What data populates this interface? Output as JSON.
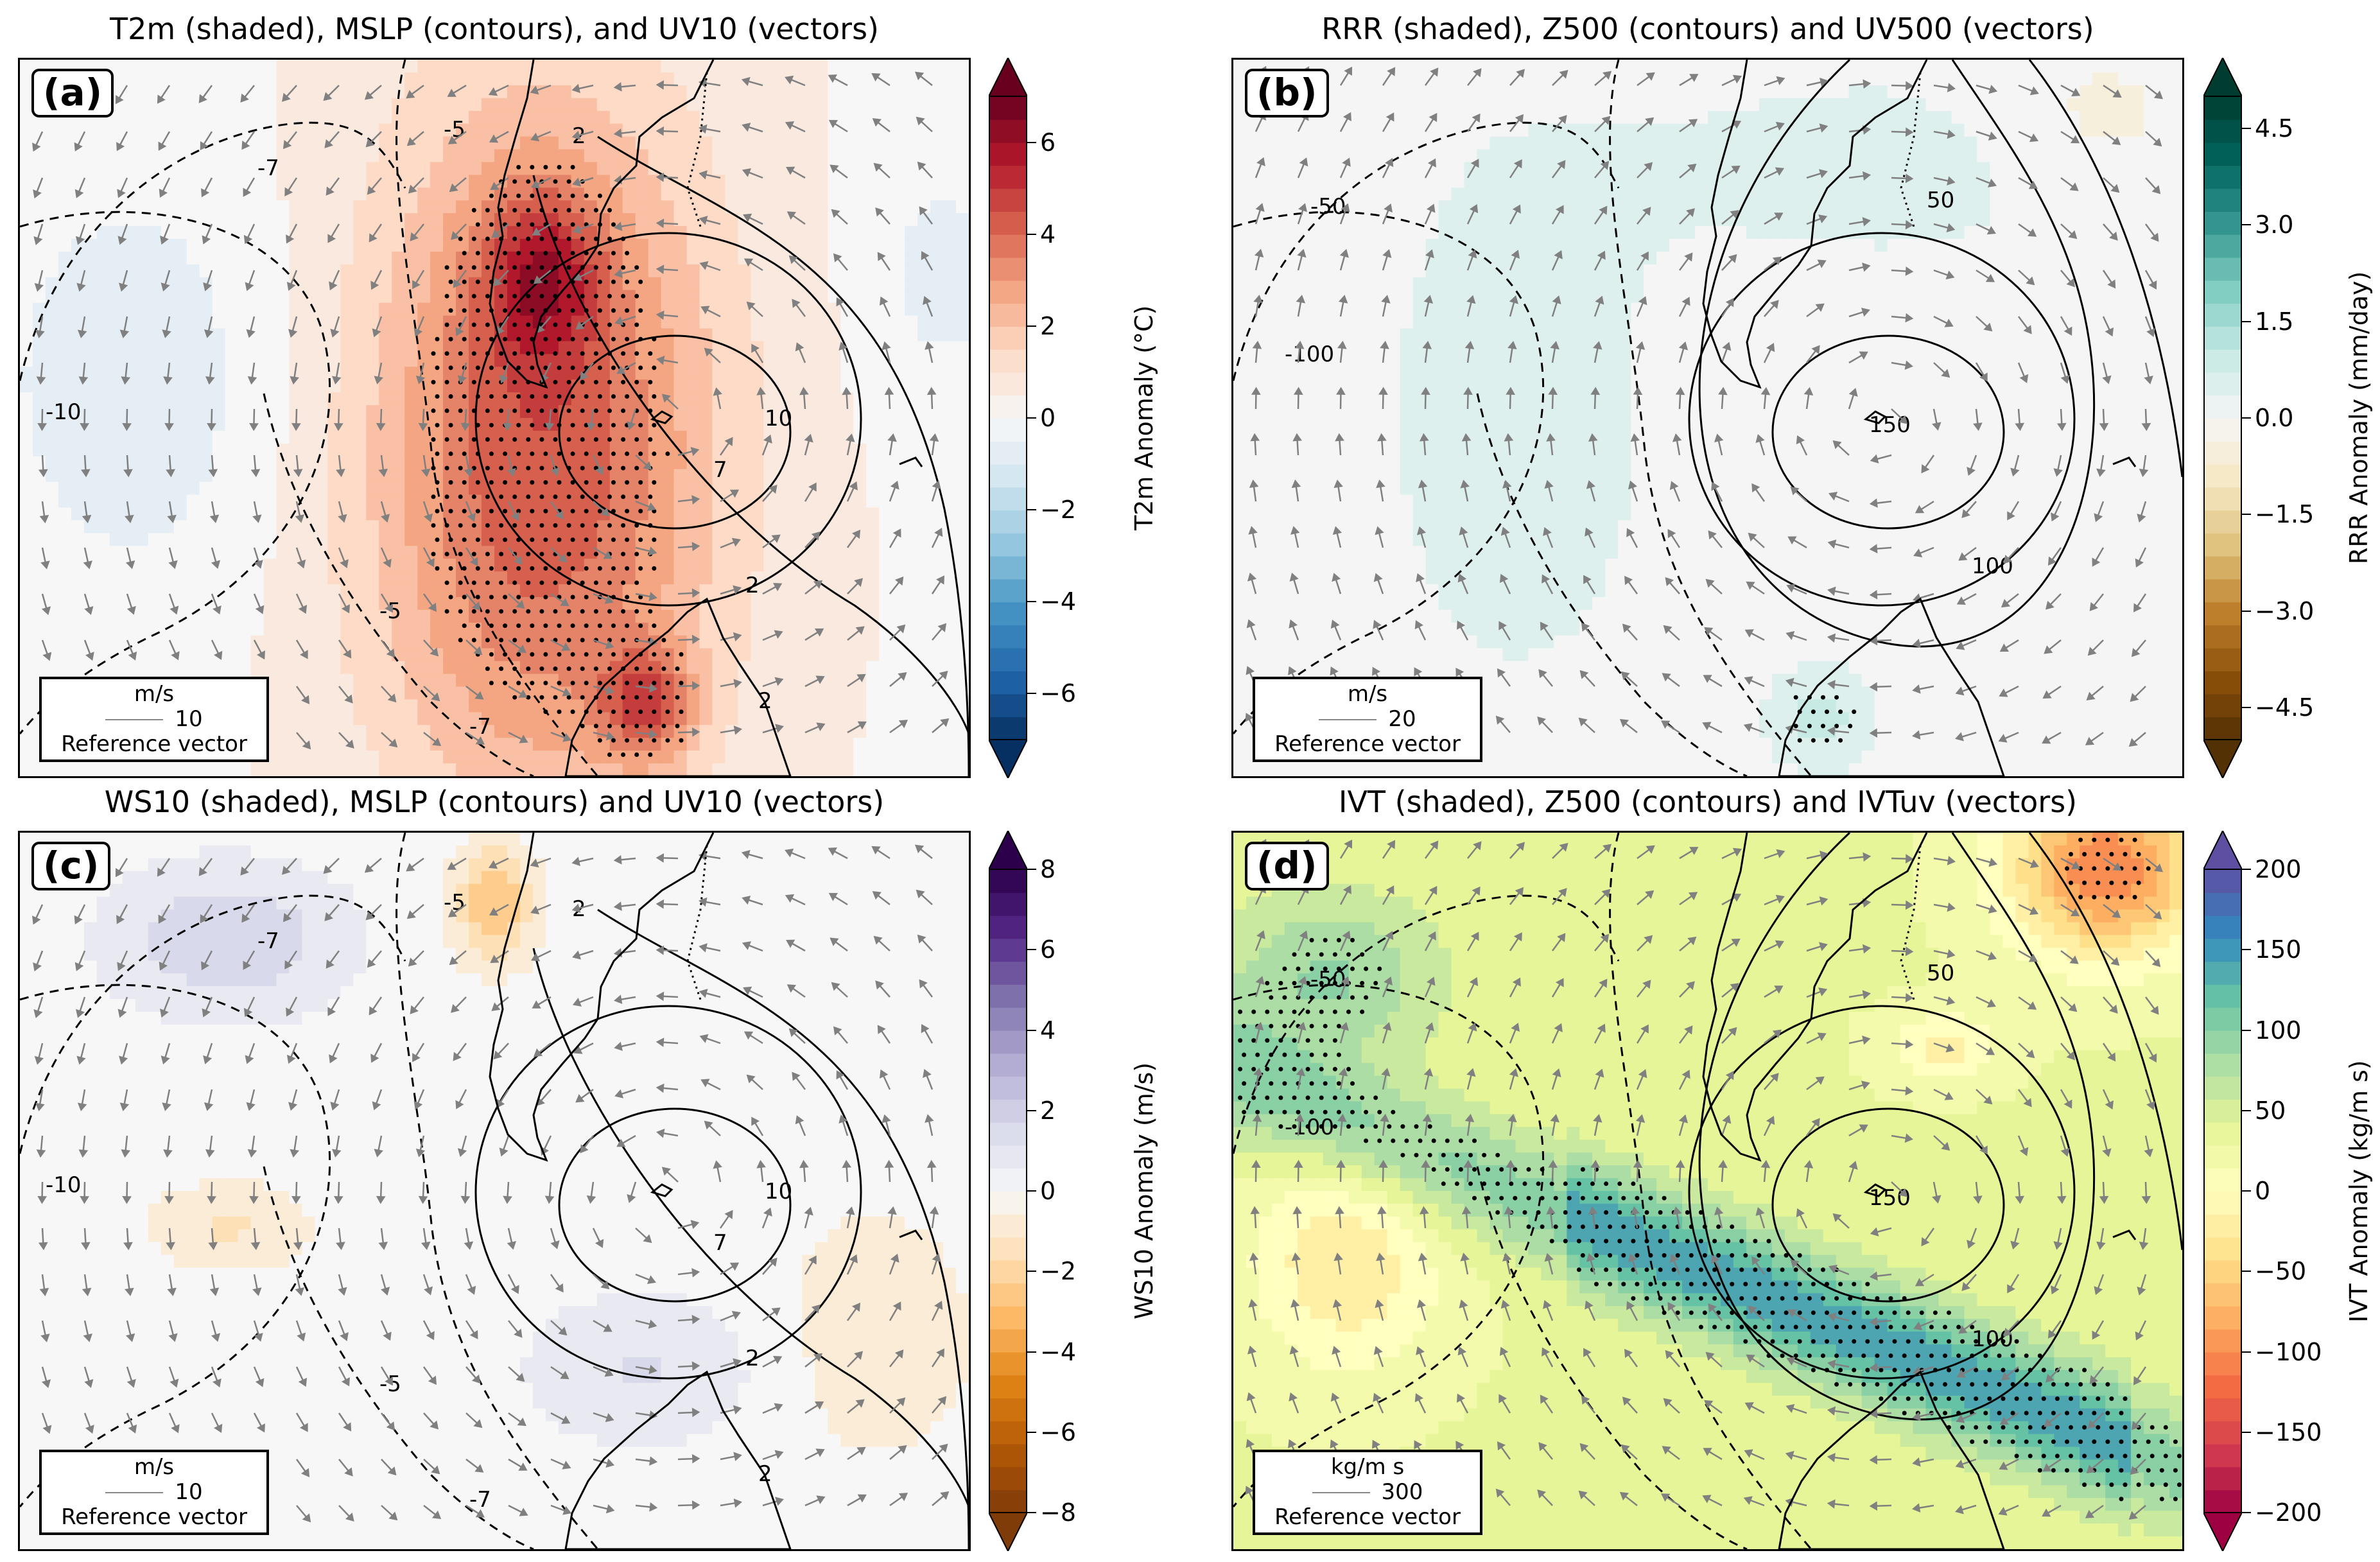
{
  "chart_data": [
    {
      "type": "heatmap",
      "panel_label": "(a)",
      "title": "T2m (shaded), MSLP (contours), and UV10 (vectors)",
      "shaded_field": "T2m",
      "colorbar": {
        "label": "T2m Anomaly (°C)",
        "colormap": "RdBu_r",
        "range": [
          -7,
          7
        ],
        "ticks": [
          -6,
          -4,
          -2,
          0,
          2,
          4,
          6
        ],
        "tick_labels": [
          "−6",
          "−4",
          "−2",
          "0",
          "2",
          "4",
          "6"
        ],
        "extend": "both"
      },
      "contour_labels": [
        "-5",
        "-7",
        "-10",
        "-5",
        "-7",
        "2",
        "7",
        "10",
        "2",
        "2"
      ],
      "reference_vector": {
        "unit": "m/s",
        "value": "10",
        "label": "Reference vector"
      },
      "stippling": "significant anomalies"
    },
    {
      "type": "heatmap",
      "panel_label": "(b)",
      "title": "RRR (shaded), Z500 (contours) and UV500 (vectors)",
      "shaded_field": "RRR",
      "colorbar": {
        "label": "RRR Anomaly (mm/day)",
        "colormap": "BrBG",
        "range": [
          -5,
          5
        ],
        "ticks": [
          -4.5,
          -3.0,
          -1.5,
          0.0,
          1.5,
          3.0,
          4.5
        ],
        "tick_labels": [
          "−4.5",
          "−3.0",
          "−1.5",
          "0.0",
          "1.5",
          "3.0",
          "4.5"
        ],
        "extend": "both"
      },
      "contour_labels": [
        "-50",
        "-100",
        "50",
        "150",
        "100"
      ],
      "reference_vector": {
        "unit": "m/s",
        "value": "20",
        "label": "Reference vector"
      },
      "stippling": "significant anomalies"
    },
    {
      "type": "heatmap",
      "panel_label": "(c)",
      "title": "WS10 (shaded), MSLP (contours) and UV10 (vectors)",
      "shaded_field": "WS10",
      "colorbar": {
        "label": "WS10 Anomaly (m/s)",
        "colormap": "PuOr_r",
        "range": [
          -8,
          8
        ],
        "ticks": [
          -8,
          -6,
          -4,
          -2,
          0,
          2,
          4,
          6,
          8
        ],
        "tick_labels": [
          "−8",
          "−6",
          "−4",
          "−2",
          "0",
          "2",
          "4",
          "6",
          "8"
        ],
        "extend": "both"
      },
      "contour_labels": [
        "-5",
        "-7",
        "-10",
        "-5",
        "-7",
        "2",
        "7",
        "10",
        "2",
        "2"
      ],
      "reference_vector": {
        "unit": "m/s",
        "value": "10",
        "label": "Reference vector"
      },
      "stippling": "significant anomalies"
    },
    {
      "type": "heatmap",
      "panel_label": "(d)",
      "title": "IVT (shaded), Z500 (contours) and IVTuv (vectors)",
      "shaded_field": "IVT",
      "colorbar": {
        "label": "IVT Anomaly (kg/m s)",
        "colormap": "Spectral",
        "range": [
          -200,
          200
        ],
        "ticks": [
          -200,
          -150,
          -100,
          -50,
          0,
          50,
          100,
          150,
          200
        ],
        "tick_labels": [
          "−200",
          "−150",
          "−100",
          "−50",
          "0",
          "50",
          "100",
          "150",
          "200"
        ],
        "extend": "both"
      },
      "contour_labels": [
        "-50",
        "-100",
        "50",
        "150",
        "100"
      ],
      "reference_vector": {
        "unit": "kg/m s",
        "value": "300",
        "label": "Reference vector"
      },
      "stippling": "significant anomalies"
    }
  ]
}
